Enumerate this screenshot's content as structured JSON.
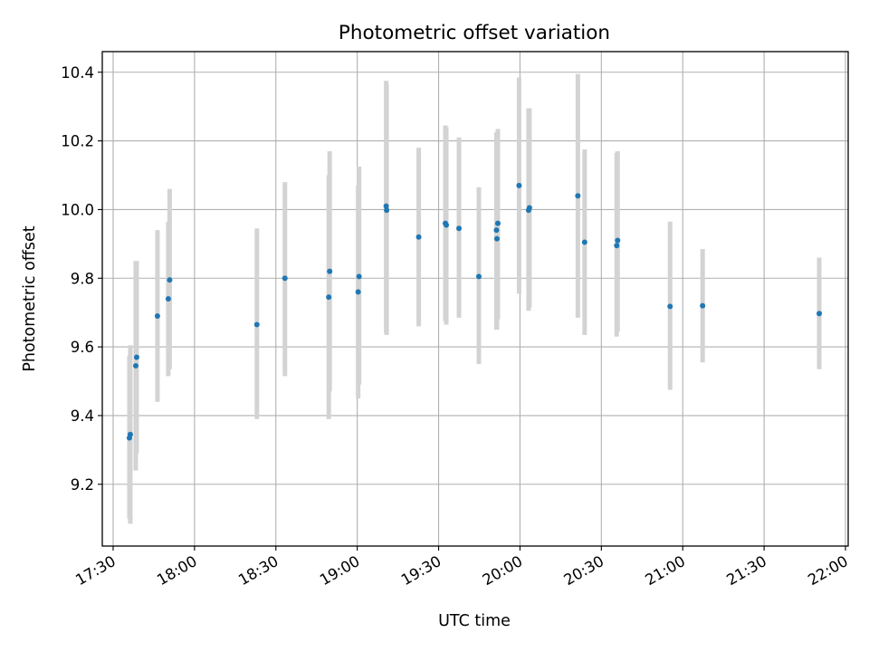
{
  "chart_data": {
    "type": "scatter",
    "title": "Photometric offset variation",
    "xlabel": "UTC time",
    "ylabel": "Photometric offset",
    "x_axis": {
      "type": "time",
      "xlim": [
        "17:26",
        "22:01"
      ],
      "ticks": [
        "17:30",
        "18:00",
        "18:30",
        "19:00",
        "19:30",
        "20:00",
        "20:30",
        "21:00",
        "21:30",
        "22:00"
      ]
    },
    "ylim": [
      9.02,
      10.46
    ],
    "y_ticks": [
      "9.2",
      "9.4",
      "9.6",
      "9.8",
      "10.0",
      "10.2",
      "10.4"
    ],
    "grid": true,
    "colors": {
      "marker": "#1f77b4",
      "errorbar": "#d3d3d3"
    },
    "series": [
      {
        "points": [
          {
            "t": "17:36:00",
            "y": 9.335,
            "lo": 9.1,
            "hi": 9.575
          },
          {
            "t": "17:36:20",
            "y": 9.345,
            "lo": 9.085,
            "hi": 9.605
          },
          {
            "t": "17:38:20",
            "y": 9.545,
            "lo": 9.24,
            "hi": 9.85
          },
          {
            "t": "17:38:40",
            "y": 9.57,
            "lo": 9.29,
            "hi": 9.85
          },
          {
            "t": "17:46:20",
            "y": 9.69,
            "lo": 9.44,
            "hi": 9.94
          },
          {
            "t": "17:50:20",
            "y": 9.74,
            "lo": 9.515,
            "hi": 9.965
          },
          {
            "t": "17:50:50",
            "y": 9.795,
            "lo": 9.535,
            "hi": 10.06
          },
          {
            "t": "18:23:00",
            "y": 9.665,
            "lo": 9.39,
            "hi": 9.945
          },
          {
            "t": "18:33:20",
            "y": 9.8,
            "lo": 9.515,
            "hi": 10.08
          },
          {
            "t": "18:49:30",
            "y": 9.745,
            "lo": 9.39,
            "hi": 10.1
          },
          {
            "t": "18:49:50",
            "y": 9.82,
            "lo": 9.47,
            "hi": 10.17
          },
          {
            "t": "19:00:20",
            "y": 9.76,
            "lo": 9.45,
            "hi": 10.07
          },
          {
            "t": "19:00:40",
            "y": 9.805,
            "lo": 9.49,
            "hi": 10.125
          },
          {
            "t": "19:10:40",
            "y": 10.01,
            "lo": 9.64,
            "hi": 10.375
          },
          {
            "t": "19:10:50",
            "y": 9.998,
            "lo": 9.635,
            "hi": 10.365
          },
          {
            "t": "19:22:40",
            "y": 9.92,
            "lo": 9.66,
            "hi": 10.18
          },
          {
            "t": "19:32:30",
            "y": 9.96,
            "lo": 9.675,
            "hi": 10.245
          },
          {
            "t": "19:32:50",
            "y": 9.955,
            "lo": 9.665,
            "hi": 10.24
          },
          {
            "t": "19:37:30",
            "y": 9.945,
            "lo": 9.685,
            "hi": 10.21
          },
          {
            "t": "19:44:50",
            "y": 9.805,
            "lo": 9.55,
            "hi": 10.065
          },
          {
            "t": "19:51:20",
            "y": 9.94,
            "lo": 9.65,
            "hi": 10.225
          },
          {
            "t": "19:51:30",
            "y": 9.915,
            "lo": 9.65,
            "hi": 10.22
          },
          {
            "t": "19:51:50",
            "y": 9.96,
            "lo": 9.68,
            "hi": 10.235
          },
          {
            "t": "19:59:40",
            "y": 10.07,
            "lo": 9.755,
            "hi": 10.385
          },
          {
            "t": "20:03:10",
            "y": 9.998,
            "lo": 9.705,
            "hi": 10.295
          },
          {
            "t": "20:03:30",
            "y": 10.005,
            "lo": 9.715,
            "hi": 10.295
          },
          {
            "t": "20:21:20",
            "y": 10.04,
            "lo": 9.685,
            "hi": 10.395
          },
          {
            "t": "20:23:50",
            "y": 9.905,
            "lo": 9.635,
            "hi": 10.175
          },
          {
            "t": "20:35:40",
            "y": 9.895,
            "lo": 9.63,
            "hi": 10.165
          },
          {
            "t": "20:36:00",
            "y": 9.91,
            "lo": 9.645,
            "hi": 10.17
          },
          {
            "t": "20:55:20",
            "y": 9.718,
            "lo": 9.475,
            "hi": 9.965
          },
          {
            "t": "21:07:20",
            "y": 9.72,
            "lo": 9.555,
            "hi": 9.885
          },
          {
            "t": "21:50:20",
            "y": 9.697,
            "lo": 9.535,
            "hi": 9.86
          }
        ]
      }
    ]
  }
}
